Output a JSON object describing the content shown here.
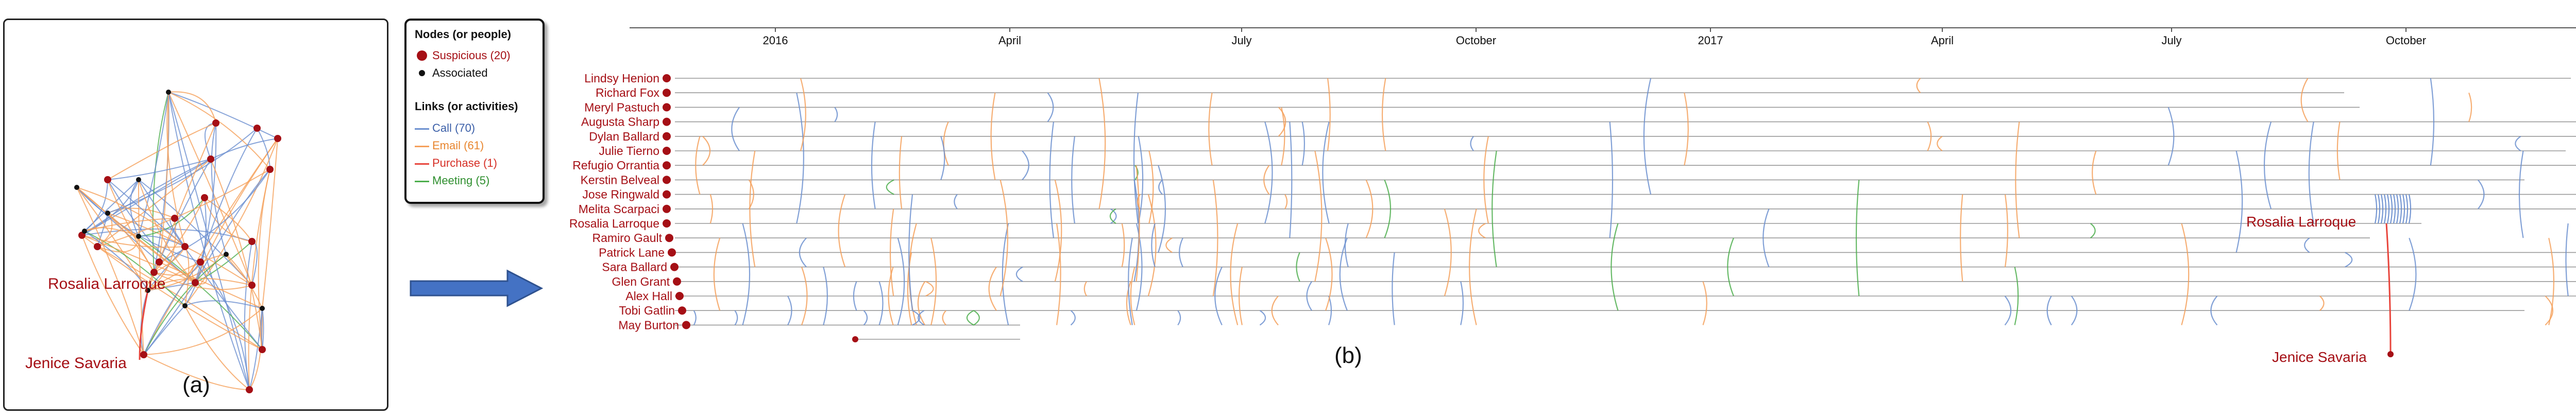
{
  "legend": {
    "nodes_title": "Nodes (or people)",
    "suspicious": "Suspicious (20)",
    "associated": "Associated",
    "links_title": "Links (or activities)",
    "call": "Call (70)",
    "email": "Email (61)",
    "purchase": "Purchase (1)",
    "meeting": "Meeting (5)"
  },
  "colors": {
    "suspicious": "#a50f15",
    "associated": "#111111",
    "call": "#6b8fcf",
    "email": "#f5a05a",
    "purchase": "#e8453c",
    "meeting": "#4cae4c",
    "arrow": "#4472c4"
  },
  "panel_a": {
    "label": "(a)",
    "highlight_1": "Rosalia Larroque",
    "highlight_2": "Jenice Savaria"
  },
  "panel_b": {
    "label": "(b)",
    "highlight_1": "Rosalia Larroque",
    "highlight_2": "Jenice Savaria",
    "axis_ticks": [
      "2016",
      "April",
      "July",
      "October",
      "2017",
      "April",
      "July",
      "October"
    ],
    "people": [
      "Lindsy Henion",
      "Richard Fox",
      "Meryl Pastuch",
      "Augusta Sharp",
      "Dylan Ballard",
      "Julie Tierno",
      "Refugio Orrantia",
      "Kerstin Belveal",
      "Jose Ringwald",
      "Melita Scarpaci",
      "Rosalia Larroque",
      "Ramiro Gault",
      "Patrick Lane",
      "Sara Ballard",
      "Glen Grant",
      "Alex Hall",
      "Tobi Gatlin",
      "May Burton"
    ]
  }
}
